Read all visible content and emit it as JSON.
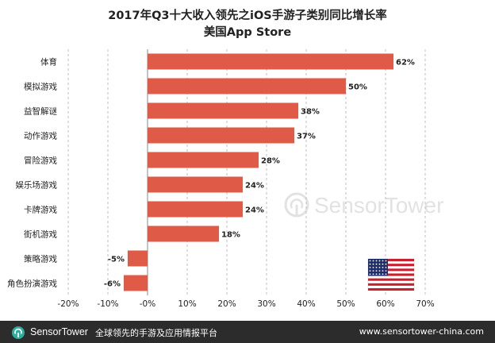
{
  "title": "2017年Q3十大收入领先之iOS手游子类别同比增长率",
  "subtitle": "美国App Store",
  "watermark": {
    "icon": "sensor-tower-logo-icon",
    "text": "SensorTower"
  },
  "flag": {
    "icon": "us-flag-icon"
  },
  "footer": {
    "brand": "SensorTower",
    "tagline": "全球领先的手游及应用情报平台",
    "url": "www.sensortower-china.com"
  },
  "colors": {
    "bar": "#e05b47",
    "grid": "#bfbfbf",
    "footer_bg": "#2c2c2c",
    "brand_accent": "#2bb0a0"
  },
  "chart_data": {
    "type": "bar",
    "orientation": "horizontal",
    "title": "2017年Q3十大收入领先之iOS手游子类别同比增长率",
    "subtitle": "美国App Store",
    "categories": [
      "体育",
      "模拟游戏",
      "益智解谜",
      "动作游戏",
      "冒险游戏",
      "娱乐场游戏",
      "卡牌游戏",
      "街机游戏",
      "策略游戏",
      "角色扮演游戏"
    ],
    "values": [
      62,
      50,
      38,
      37,
      28,
      24,
      24,
      18,
      -5,
      -6
    ],
    "value_labels": [
      "62%",
      "50%",
      "38%",
      "37%",
      "28%",
      "24%",
      "24%",
      "18%",
      "-5%",
      "-6%"
    ],
    "xlim": [
      -20,
      70
    ],
    "xticks": [
      -20,
      -10,
      0,
      10,
      20,
      30,
      40,
      50,
      60,
      70
    ],
    "xtick_labels": [
      "-20%",
      "-10%",
      "-0%",
      "10%",
      "20%",
      "30%",
      "40%",
      "50%",
      "60%",
      "70%"
    ],
    "grid": "vertical dashed",
    "legend": "none"
  }
}
